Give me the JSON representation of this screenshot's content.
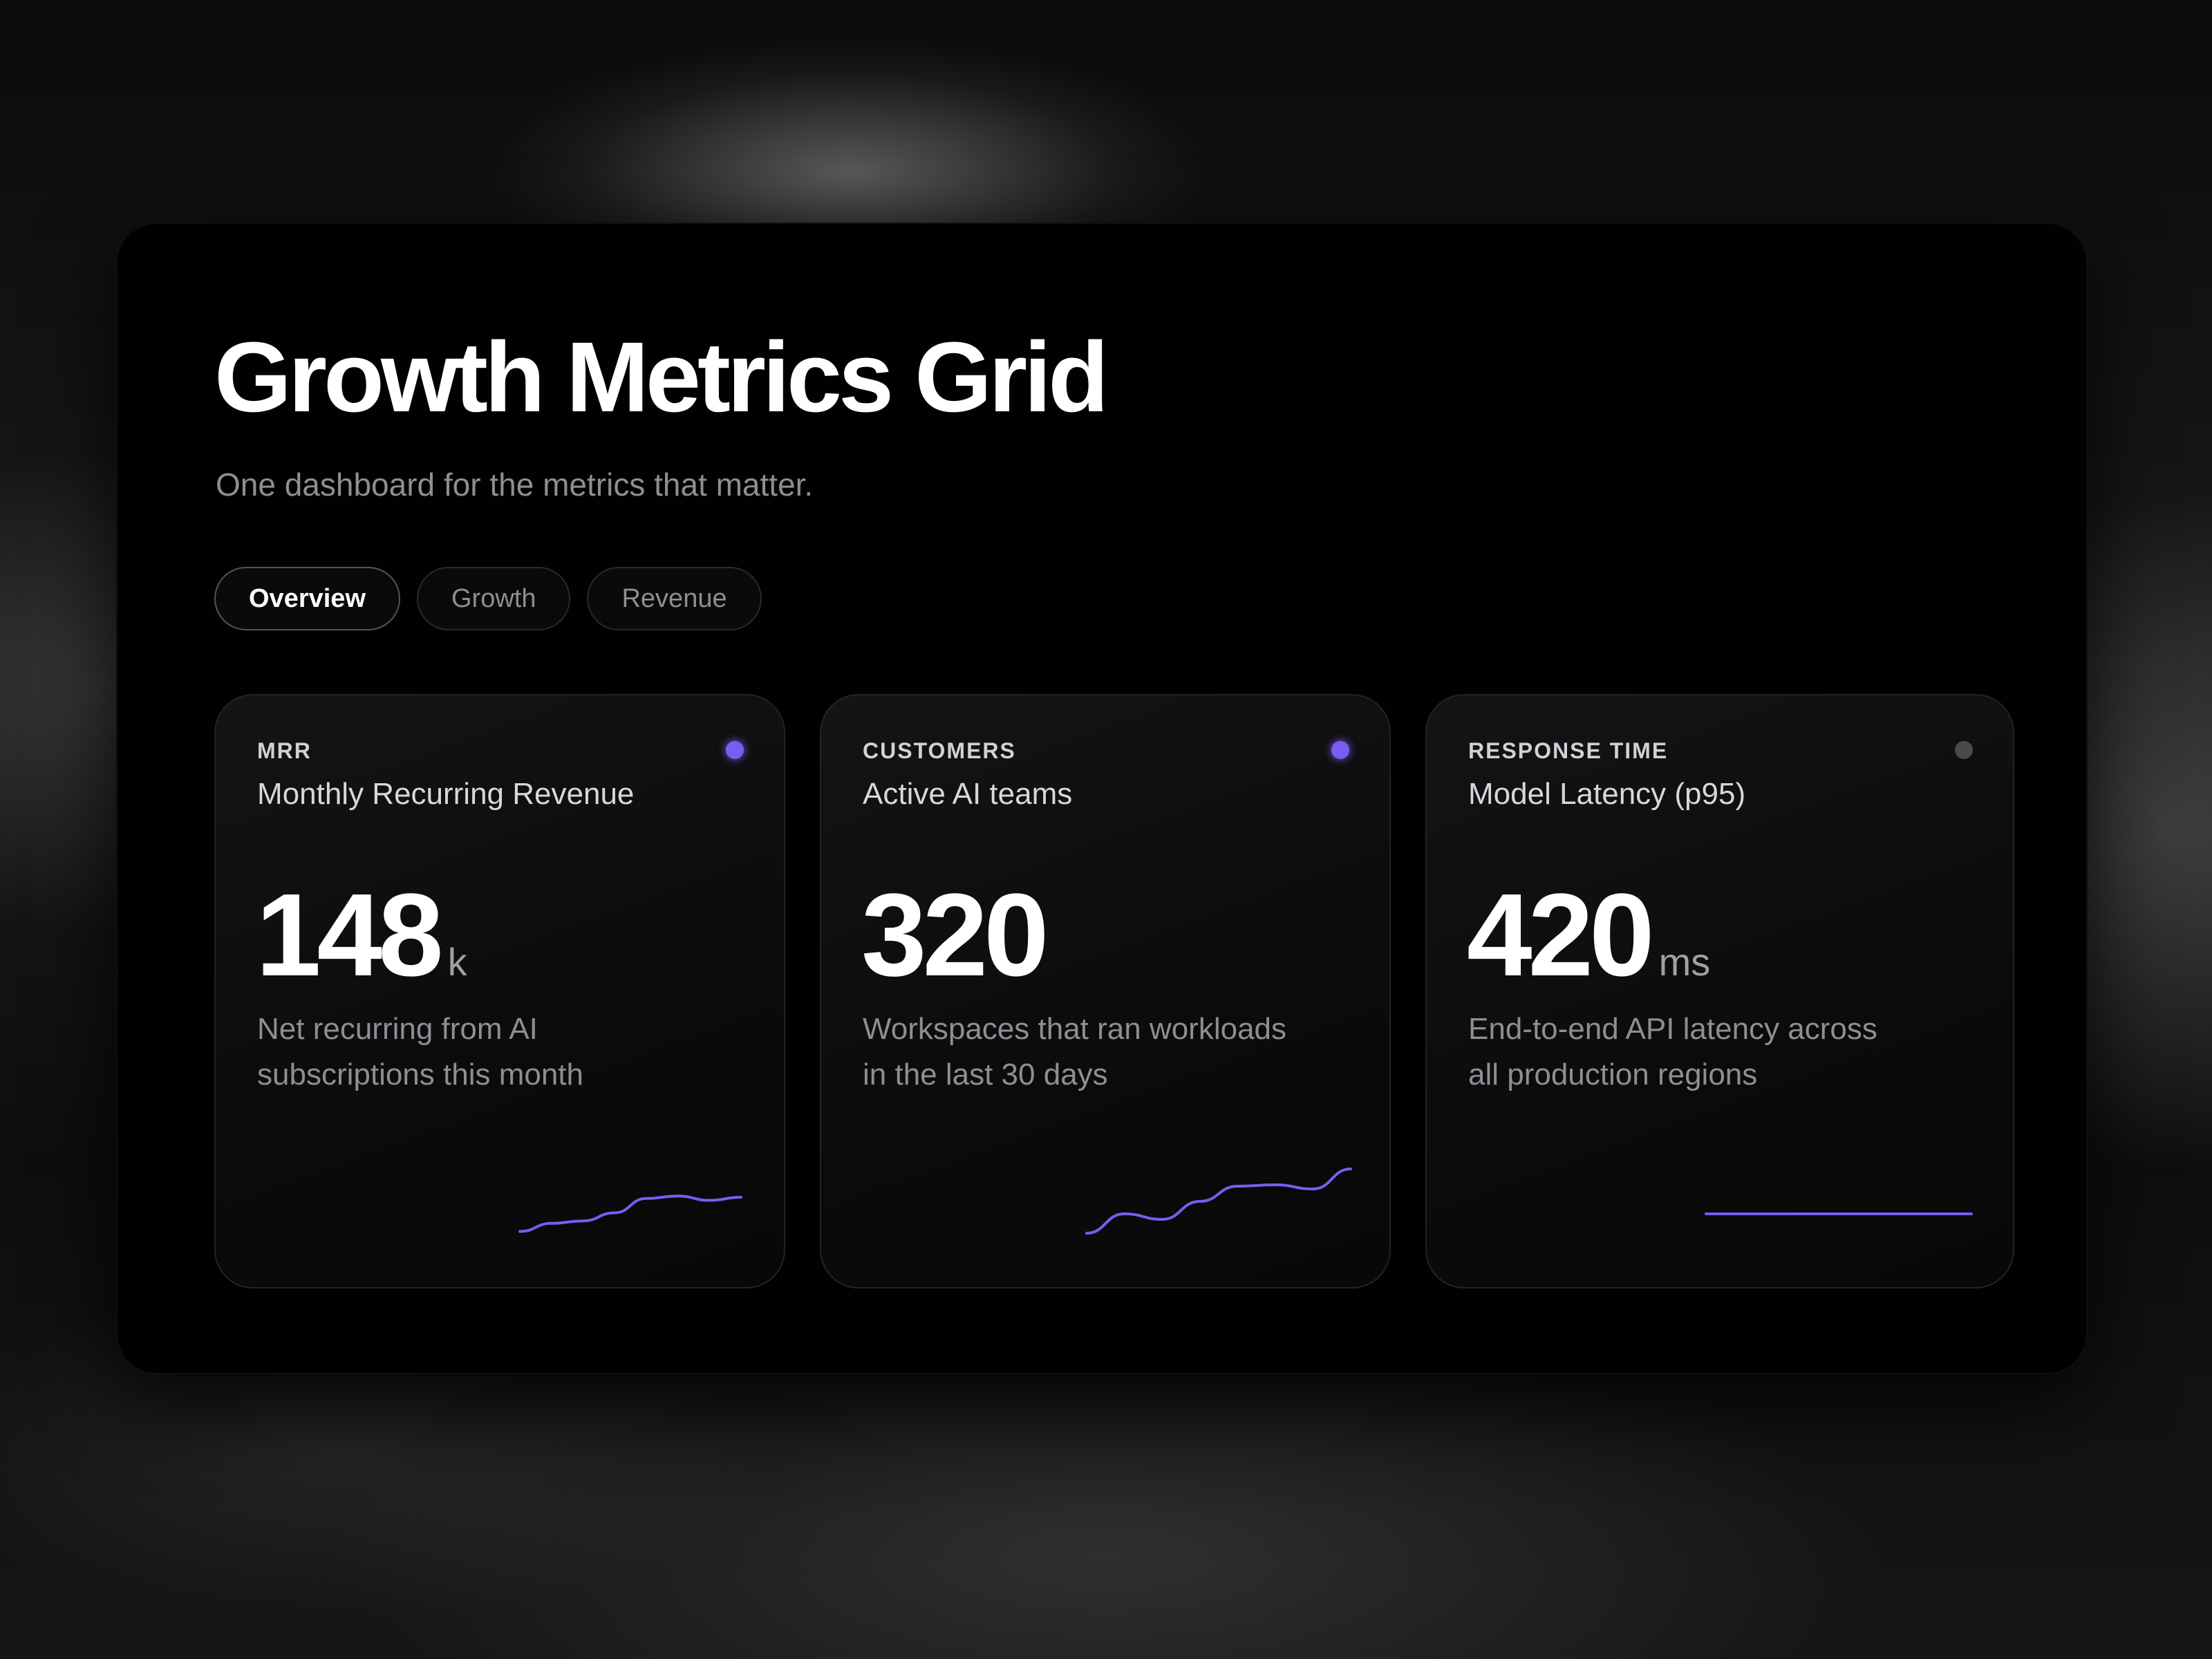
{
  "header": {
    "title": "Growth Metrics Grid",
    "subtitle": "One dashboard for the metrics that matter."
  },
  "tabs": [
    {
      "label": "Overview",
      "active": true
    },
    {
      "label": "Growth",
      "active": false
    },
    {
      "label": "Revenue",
      "active": false
    }
  ],
  "colors": {
    "accent": "#7b5cf0",
    "inactive_dot": "#4a4a4e"
  },
  "cards": [
    {
      "kicker": "MRR",
      "label": "Monthly Recurring Revenue",
      "value": "148",
      "unit": "k",
      "description": "Net recurring from AI subscriptions this month",
      "status_dot": "accent",
      "trend": [
        0.05,
        0.18,
        0.22,
        0.35,
        0.58,
        0.62,
        0.55,
        0.6
      ]
    },
    {
      "kicker": "CUSTOMERS",
      "label": "Active AI teams",
      "value": "320",
      "unit": "",
      "description": "Workspaces that ran workloads in the last 30 days",
      "status_dot": "accent",
      "trend": [
        0.02,
        0.3,
        0.22,
        0.48,
        0.7,
        0.72,
        0.66,
        0.95
      ]
    },
    {
      "kicker": "RESPONSE TIME",
      "label": "Model Latency (p95)",
      "value": "420",
      "unit": "ms",
      "description": "End-to-end API latency across all production regions",
      "status_dot": "inactive",
      "trend": [
        0.5,
        0.5,
        0.5,
        0.5,
        0.5,
        0.5,
        0.5,
        0.5
      ]
    }
  ]
}
